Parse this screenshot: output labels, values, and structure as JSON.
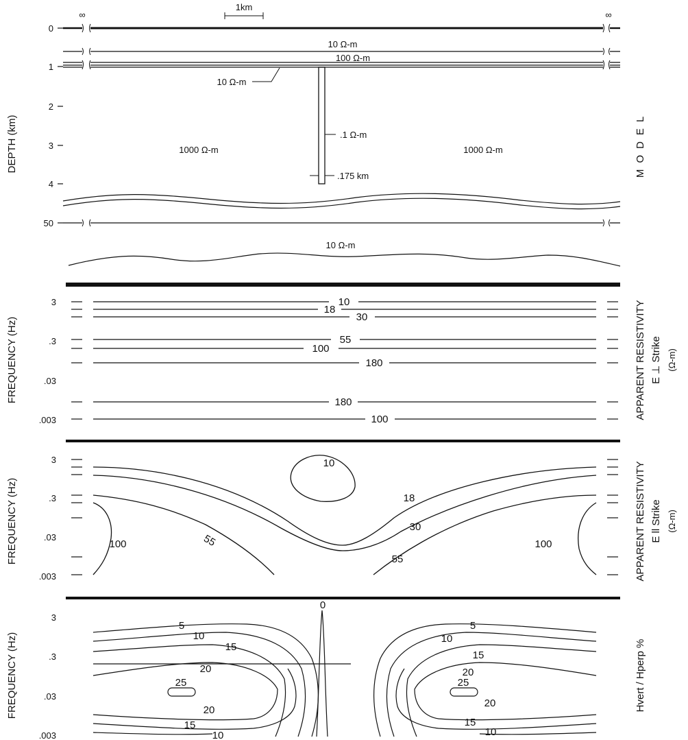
{
  "model": {
    "ylabel": "DEPTH (km)",
    "depth_ticks": [
      "0",
      "1",
      "2",
      "3",
      "4",
      "50"
    ],
    "scale_bar_label": "1km",
    "infinity_left": "∞",
    "infinity_right": "∞",
    "layer_top": "10 Ω-m",
    "layer_mid": "100 Ω-m",
    "layer_low_left": "10 Ω-m",
    "dike_resistivity": ".1 Ω-m",
    "dike_width": ".175 km",
    "host_left": "1000 Ω-m",
    "host_right": "1000 Ω-m",
    "basement": "10 Ω-m",
    "side_title": "MODEL"
  },
  "panel_perp": {
    "ylabel": "FREQUENCY (Hz)",
    "freq_ticks": [
      "3",
      ".3",
      ".03",
      ".003"
    ],
    "contours": [
      "10",
      "18",
      "30",
      "55",
      "100",
      "180",
      "180",
      "100"
    ],
    "side_title": "APPARENT RESISTIVITY",
    "side_sub": "E ⊥ Strike",
    "side_unit": "(Ω-m)"
  },
  "panel_par": {
    "ylabel": "FREQUENCY (Hz)",
    "freq_ticks": [
      "3",
      ".3",
      ".03",
      ".003"
    ],
    "contours": [
      "10",
      "18",
      "30",
      "55",
      "55",
      "100",
      "100"
    ],
    "side_title": "APPARENT RESISTIVITY",
    "side_sub": "E ll Strike",
    "side_unit": "(Ω-m)"
  },
  "panel_h": {
    "ylabel": "FREQUENCY (Hz)",
    "freq_ticks": [
      "3",
      ".3",
      ".03",
      ".003"
    ],
    "contours_left": [
      "5",
      "10",
      "15",
      "20",
      "25",
      "20",
      "15",
      "10"
    ],
    "contours_right": [
      "5",
      "10",
      "15",
      "20",
      "25",
      "20",
      "15",
      "10"
    ],
    "contour_center": "0",
    "side_title": "Hvert / Hperp %"
  }
}
